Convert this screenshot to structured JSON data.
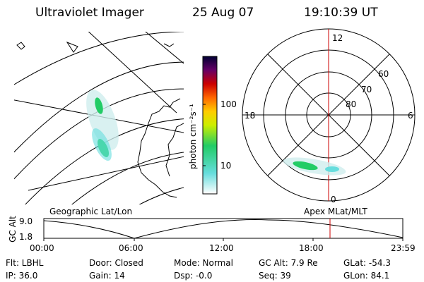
{
  "header": {
    "instrument": "Ultraviolet Imager",
    "date": "25 Aug 07",
    "time": "19:10:39 UT"
  },
  "colorbar": {
    "unit_label": "photon cm⁻²s⁻¹",
    "ticks": [
      "100",
      "10"
    ]
  },
  "polar_plot": {
    "mlt_labels": [
      "12",
      "18",
      "6",
      "0"
    ],
    "mlat_labels": [
      "60",
      "70",
      "80"
    ]
  },
  "map_labels": {
    "left": "Geographic Lat/Lon",
    "right": "Apex MLat/MLT"
  },
  "altitude_plot": {
    "ylabel": "GC Alt",
    "y_ticks": [
      "9.0",
      "1.8"
    ],
    "x_ticks": [
      "00:00",
      "06:00",
      "12:00",
      "18:00",
      "23:59"
    ]
  },
  "status": {
    "filter": "Flt: LBHL",
    "ip": "IP: 36.0",
    "door": "Door: Closed",
    "gain": "Gain: 14",
    "mode": "Mode: Normal",
    "dsp": "Dsp:   -0.0",
    "gc_alt": "GC Alt: 7.9 Re",
    "seq": "Seq: 39",
    "glat": "GLat: -54.3",
    "glon": "GLon:  84.1"
  },
  "colors": {
    "marker": "#cc0000",
    "aurora_green": "#22cc66",
    "aurora_cyan": "#66dddd"
  }
}
